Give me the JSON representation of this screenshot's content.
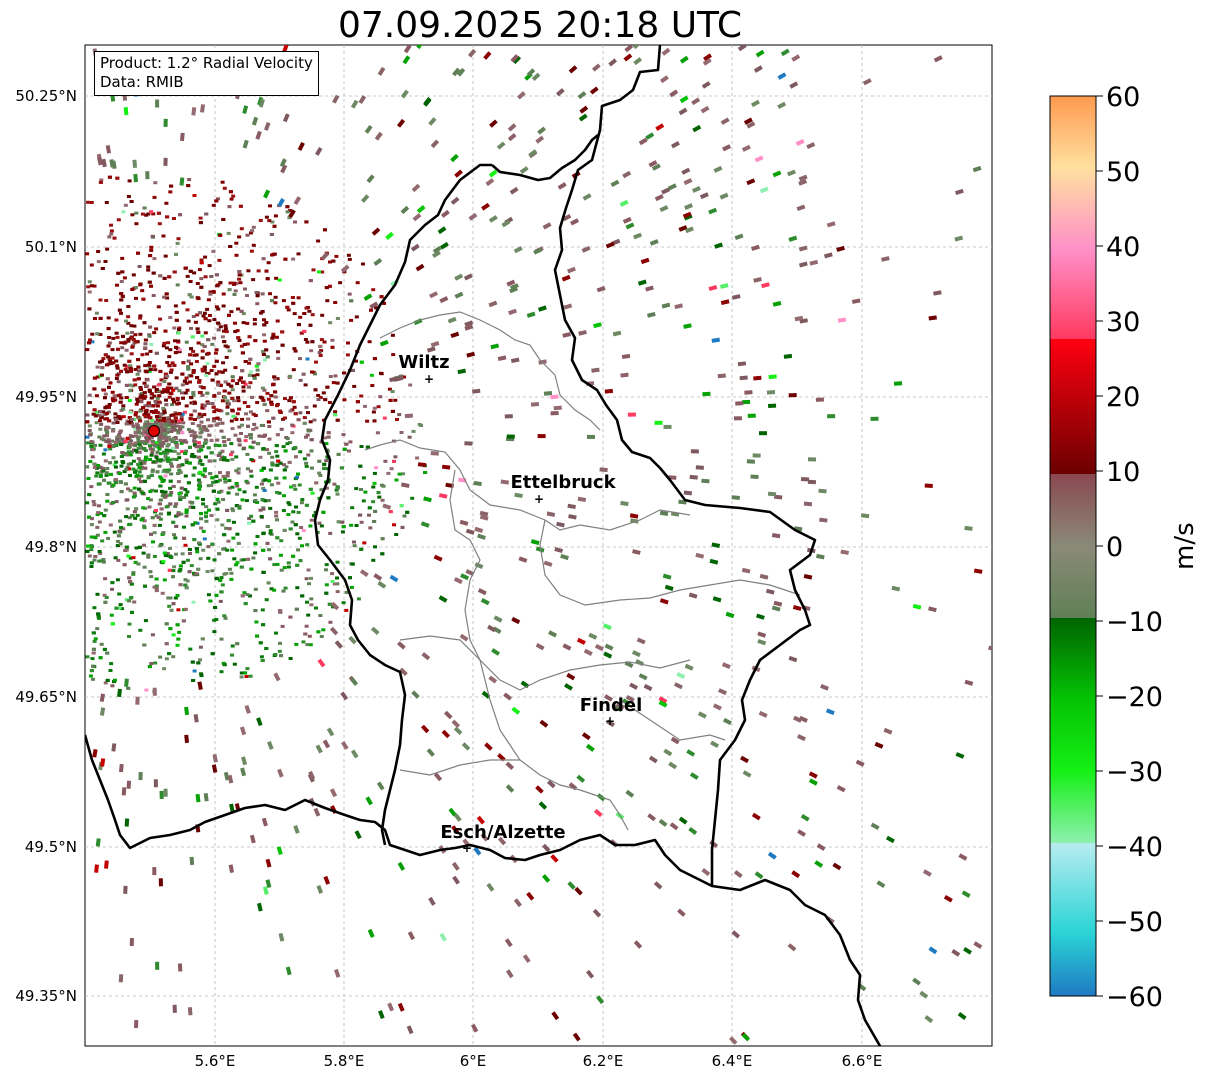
{
  "title": "07.09.2025 20:18 UTC",
  "info_box": {
    "product": "Product: 1.2° Radial Velocity",
    "source": "Data: RMIB"
  },
  "lat_ticks": [
    "50.25°N",
    "50.1°N",
    "49.95°N",
    "49.8°N",
    "49.65°N",
    "49.5°N",
    "49.35°N"
  ],
  "lon_ticks": [
    "5.6°E",
    "5.8°E",
    "6°E",
    "6.2°E",
    "6.4°E",
    "6.6°E"
  ],
  "cities": [
    {
      "name": "Wiltz"
    },
    {
      "name": "Ettelbruck"
    },
    {
      "name": "Findel"
    },
    {
      "name": "Esch/Alzette"
    }
  ],
  "colorbar": {
    "label": "m/s",
    "ticks": [
      "60",
      "50",
      "40",
      "30",
      "20",
      "10",
      "0",
      "−10",
      "−20",
      "−30",
      "−40",
      "−50",
      "−60"
    ],
    "min": -60,
    "max": 60,
    "colors": {
      "neg_60": "#1f7ac2",
      "neg_50": "#2ad4d6",
      "neg_40": "#b8ecef",
      "neg_30": "#55f06a",
      "neg_20": "#04c204",
      "neg_10": "#006400",
      "zero": "#8a8a78",
      "pos_10": "#6b0000",
      "pos_20": "#c40000",
      "pos_30": "#ff4a60",
      "pos_40": "#ff90c8",
      "pos_50": "#ffd090",
      "pos_60": "#ff9a50"
    }
  },
  "radar_marker_color": "#e00000"
}
